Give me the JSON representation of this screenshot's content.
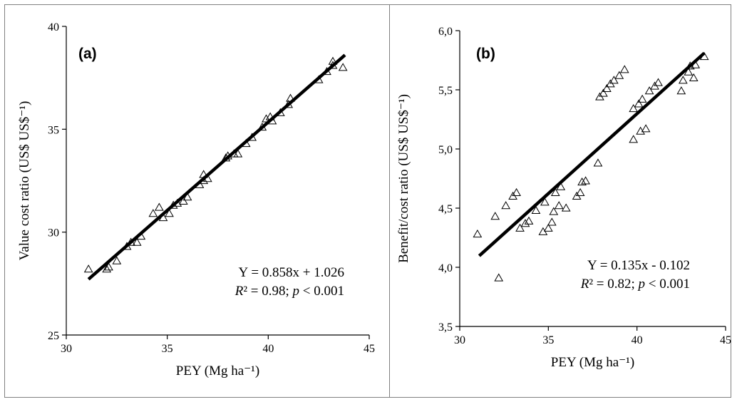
{
  "chart_data": [
    {
      "type": "scatter",
      "panel_label": "(a)",
      "xlabel": "PEY (Mg ha⁻¹)",
      "ylabel": "Value cost ratio  (US$ US$⁻¹)",
      "xlim": [
        30,
        45
      ],
      "ylim": [
        25,
        40
      ],
      "x_ticks": [
        "30",
        "35",
        "40",
        "45"
      ],
      "y_ticks": [
        "25",
        "30",
        "35",
        "40"
      ],
      "equation": "Y = 0.858x + 1.026",
      "r2": "R² = 0.98; p < 0.001",
      "regression": {
        "slope": 0.858,
        "intercept": 1.026,
        "x_range": [
          31.1,
          43.8
        ]
      },
      "marker": "open-triangle",
      "grid": false,
      "points": [
        [
          31.1,
          28.2
        ],
        [
          32.0,
          28.2
        ],
        [
          32.1,
          28.3
        ],
        [
          32.5,
          28.6
        ],
        [
          33.0,
          29.3
        ],
        [
          33.2,
          29.5
        ],
        [
          33.5,
          29.5
        ],
        [
          33.7,
          29.8
        ],
        [
          34.3,
          30.9
        ],
        [
          34.6,
          31.2
        ],
        [
          34.8,
          30.7
        ],
        [
          35.1,
          30.9
        ],
        [
          35.3,
          31.3
        ],
        [
          35.5,
          31.4
        ],
        [
          35.8,
          31.5
        ],
        [
          36.0,
          31.7
        ],
        [
          36.6,
          32.3
        ],
        [
          36.8,
          32.5
        ],
        [
          36.8,
          32.8
        ],
        [
          37.0,
          32.6
        ],
        [
          37.9,
          33.6
        ],
        [
          38.0,
          33.7
        ],
        [
          38.3,
          33.8
        ],
        [
          38.5,
          33.8
        ],
        [
          38.9,
          34.3
        ],
        [
          39.2,
          34.6
        ],
        [
          39.7,
          35.1
        ],
        [
          39.9,
          35.5
        ],
        [
          40.1,
          35.6
        ],
        [
          40.2,
          35.4
        ],
        [
          40.6,
          35.8
        ],
        [
          41.0,
          36.2
        ],
        [
          41.1,
          36.5
        ],
        [
          42.5,
          37.4
        ],
        [
          42.9,
          37.8
        ],
        [
          43.2,
          38.1
        ],
        [
          43.2,
          38.3
        ],
        [
          43.7,
          38.0
        ]
      ]
    },
    {
      "type": "scatter",
      "panel_label": "(b)",
      "xlabel": "PEY (Mg ha⁻¹)",
      "ylabel": "Benefit/cost ratio  (US$ US$⁻¹)",
      "xlim": [
        30,
        45
      ],
      "ylim": [
        3.5,
        6.0
      ],
      "x_ticks": [
        "30",
        "35",
        "40",
        "45"
      ],
      "y_ticks": [
        "3,5",
        "4,0",
        "4,5",
        "5,0",
        "5,5",
        "6,0"
      ],
      "equation": "Y = 0.135x - 0.102",
      "r2": "R² = 0.82; p < 0.001",
      "regression": {
        "slope": 0.135,
        "intercept": -0.102,
        "x_range": [
          31.1,
          43.8
        ]
      },
      "marker": "open-triangle",
      "grid": false,
      "points": [
        [
          31.0,
          4.28
        ],
        [
          32.0,
          4.43
        ],
        [
          32.2,
          3.91
        ],
        [
          32.6,
          4.52
        ],
        [
          33.0,
          4.6
        ],
        [
          33.2,
          4.63
        ],
        [
          33.4,
          4.33
        ],
        [
          33.7,
          4.37
        ],
        [
          33.9,
          4.39
        ],
        [
          34.3,
          4.48
        ],
        [
          34.7,
          4.3
        ],
        [
          34.8,
          4.55
        ],
        [
          35.0,
          4.33
        ],
        [
          35.2,
          4.38
        ],
        [
          35.3,
          4.47
        ],
        [
          35.4,
          4.63
        ],
        [
          35.6,
          4.52
        ],
        [
          35.7,
          4.68
        ],
        [
          36.0,
          4.5
        ],
        [
          36.6,
          4.6
        ],
        [
          36.8,
          4.63
        ],
        [
          36.9,
          4.72
        ],
        [
          37.1,
          4.73
        ],
        [
          37.8,
          4.88
        ],
        [
          37.9,
          5.44
        ],
        [
          38.1,
          5.47
        ],
        [
          38.3,
          5.51
        ],
        [
          38.5,
          5.55
        ],
        [
          38.7,
          5.58
        ],
        [
          39.0,
          5.62
        ],
        [
          39.3,
          5.67
        ],
        [
          39.8,
          5.08
        ],
        [
          39.8,
          5.34
        ],
        [
          40.1,
          5.38
        ],
        [
          40.2,
          5.15
        ],
        [
          40.3,
          5.42
        ],
        [
          40.5,
          5.17
        ],
        [
          40.7,
          5.49
        ],
        [
          41.0,
          5.53
        ],
        [
          41.2,
          5.56
        ],
        [
          42.5,
          5.49
        ],
        [
          42.6,
          5.58
        ],
        [
          42.9,
          5.65
        ],
        [
          43.0,
          5.7
        ],
        [
          43.2,
          5.6
        ],
        [
          43.3,
          5.71
        ],
        [
          43.8,
          5.78
        ]
      ]
    }
  ]
}
